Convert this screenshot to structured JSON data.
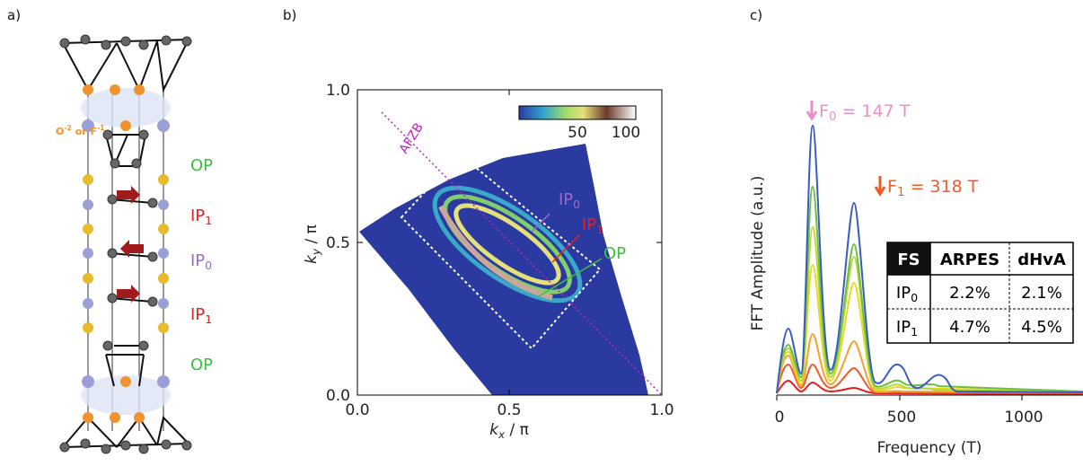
{
  "panels": {
    "a": {
      "label": "a)",
      "oxygen_label": {
        "base1": "O",
        "sup1": "-2",
        "base2": " or F",
        "sup2": "-1"
      },
      "layers": [
        {
          "base": "OP"
        },
        {
          "base": "IP",
          "sub": "1"
        },
        {
          "base": "IP",
          "sub": "0"
        },
        {
          "base": "IP",
          "sub": "1"
        },
        {
          "base": "OP"
        }
      ]
    },
    "b": {
      "label": "b)",
      "xlabel": {
        "base": "k",
        "sub": "x",
        "rest": " / π"
      },
      "ylabel": {
        "base": "k",
        "sub": "y",
        "rest": " / π"
      },
      "xticks": [
        "0.0",
        "0.5",
        "1.0"
      ],
      "yticks": [
        "0.0",
        "0.5",
        "1.0"
      ],
      "colorbar_ticks": [
        "50",
        "100"
      ],
      "zone_label": "AFZB",
      "band_labels": [
        {
          "base": "IP",
          "sub": "0"
        },
        {
          "base": "IP",
          "sub": "1"
        },
        {
          "base": "OP"
        }
      ]
    },
    "c": {
      "label": "c)",
      "ylabel": "FFT Amplitude (a.u.)",
      "xlabel": "Frequency (T)",
      "xticks": [
        "0",
        "500",
        "1000"
      ],
      "peaks": [
        {
          "base": "F",
          "sub": "0",
          "rest": " = 147 T"
        },
        {
          "base": "F",
          "sub": "1",
          "rest": " = 318 T"
        }
      ],
      "table": {
        "header": [
          "FS",
          "ARPES",
          "dHvA"
        ],
        "rows": [
          [
            {
              "base": "IP",
              "sub": "0"
            },
            "2.2%",
            "2.1%"
          ],
          [
            {
              "base": "IP",
              "sub": "1"
            },
            "4.7%",
            "4.5%"
          ]
        ]
      }
    }
  }
}
